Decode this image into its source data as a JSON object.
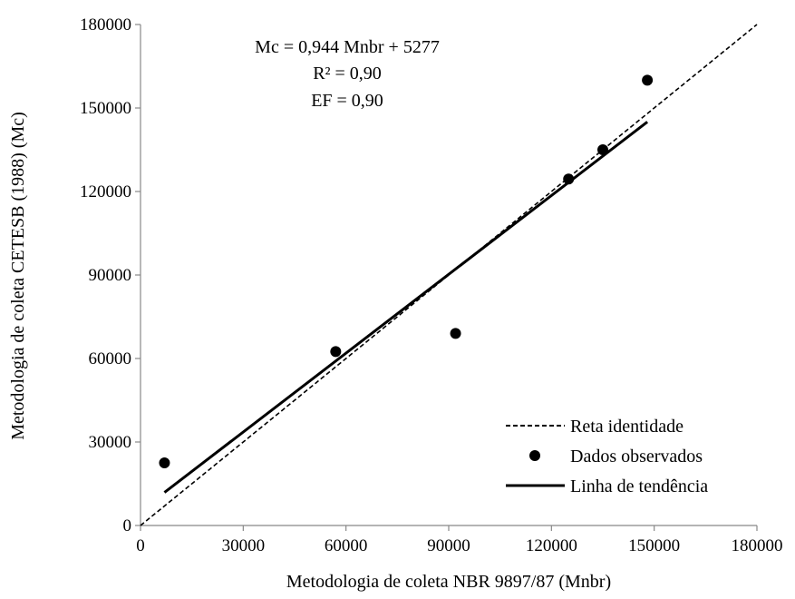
{
  "chart_data": {
    "type": "scatter",
    "xlabel": "Metodologia de coleta NBR 9897/87 (Mnbr)",
    "ylabel": "Metodologia de coleta CETESB (1988) (Mc)",
    "xlim": [
      0,
      180000
    ],
    "ylim": [
      0,
      180000
    ],
    "x_ticks": [
      0,
      30000,
      60000,
      90000,
      120000,
      150000,
      180000
    ],
    "y_ticks": [
      0,
      30000,
      60000,
      90000,
      120000,
      150000,
      180000
    ],
    "grid": false,
    "legend_position": "bottom-right",
    "annotations": {
      "equation": "Mc = 0,944 Mnbr + 5277",
      "r2": "R² = 0,90",
      "ef": "EF = 0,90"
    },
    "series": [
      {
        "name": "Reta identidade",
        "style": "dashed-line",
        "x": [
          0,
          180000
        ],
        "y": [
          0,
          180000
        ]
      },
      {
        "name": "Dados observados",
        "style": "markers",
        "x": [
          7000,
          57000,
          92000,
          125000,
          135000,
          148000
        ],
        "y": [
          22500,
          62500,
          69000,
          124500,
          135000,
          160000
        ]
      },
      {
        "name": "Linha de tendência",
        "style": "solid-line",
        "slope": 0.944,
        "intercept": 5277,
        "x": [
          7000,
          148000
        ],
        "y": [
          11885,
          144989
        ]
      }
    ]
  }
}
